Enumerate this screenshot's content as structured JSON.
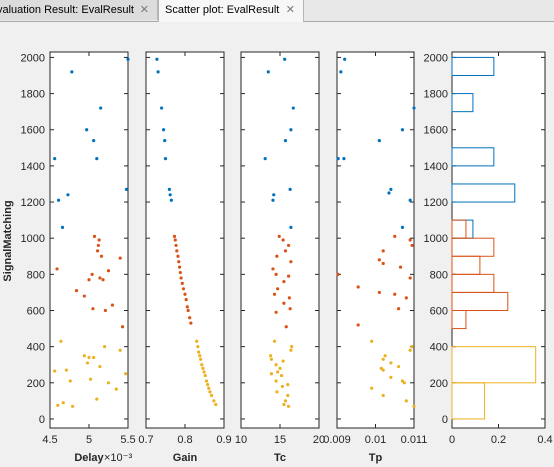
{
  "tabs": [
    {
      "label": "valuation Result: EvalResult",
      "close": "✕"
    },
    {
      "label": "Scatter plot: EvalResult",
      "close": "✕"
    }
  ],
  "colors": {
    "blue": "#0072BD",
    "orange": "#D95319",
    "yellow": "#EDB120"
  },
  "chart_data": {
    "type": "scatter",
    "ylabel": "SignalMatching",
    "ylim": [
      -50,
      2030
    ],
    "yticks": [
      0,
      200,
      400,
      600,
      800,
      1000,
      1200,
      1400,
      1600,
      1800,
      2000
    ],
    "panels": [
      {
        "xlabel": "Delay",
        "xlim": [
          4.5,
          5.5
        ],
        "xticks": [
          4.5,
          5,
          5.5
        ],
        "tick_labels": [
          "4.5",
          "5",
          "5.5"
        ],
        "exponent": "×10⁻³",
        "series": [
          {
            "color": "blue",
            "points": [
              [
                5.5,
                1990
              ],
              [
                4.78,
                1920
              ],
              [
                5.15,
                1720
              ],
              [
                4.97,
                1600
              ],
              [
                5.06,
                1540
              ],
              [
                5.1,
                1440
              ],
              [
                4.56,
                1440
              ],
              [
                5.48,
                1270
              ],
              [
                4.73,
                1240
              ],
              [
                4.61,
                1210
              ],
              [
                4.66,
                1060
              ]
            ]
          },
          {
            "color": "orange",
            "points": [
              [
                5.07,
                1010
              ],
              [
                5.13,
                990
              ],
              [
                5.12,
                960
              ],
              [
                5.11,
                930
              ],
              [
                5.16,
                900
              ],
              [
                5.4,
                890
              ],
              [
                4.59,
                830
              ],
              [
                5.25,
                820
              ],
              [
                5.04,
                800
              ],
              [
                5.14,
                780
              ],
              [
                5.18,
                770
              ],
              [
                5.0,
                770
              ],
              [
                4.84,
                710
              ],
              [
                4.94,
                680
              ],
              [
                5.3,
                630
              ],
              [
                5.05,
                610
              ],
              [
                5.21,
                600
              ],
              [
                5.43,
                510
              ]
            ]
          },
          {
            "color": "yellow",
            "points": [
              [
                4.64,
                430
              ],
              [
                5.2,
                400
              ],
              [
                5.4,
                380
              ],
              [
                4.94,
                350
              ],
              [
                5.0,
                340
              ],
              [
                5.06,
                340
              ],
              [
                4.98,
                310
              ],
              [
                5.14,
                290
              ],
              [
                4.71,
                270
              ],
              [
                4.56,
                265
              ],
              [
                5.47,
                250
              ],
              [
                5.02,
                220
              ],
              [
                4.76,
                210
              ],
              [
                5.25,
                200
              ],
              [
                5.35,
                165
              ],
              [
                5.1,
                110
              ],
              [
                4.67,
                90
              ],
              [
                4.6,
                75
              ],
              [
                4.79,
                70
              ]
            ]
          }
        ]
      },
      {
        "xlabel": "Gain",
        "xlim": [
          0.7,
          0.9
        ],
        "xticks": [
          0.7,
          0.8,
          0.9
        ],
        "tick_labels": [
          "0.7",
          "0.8",
          "0.9"
        ],
        "series": [
          {
            "color": "blue",
            "points": [
              [
                0.728,
                1990
              ],
              [
                0.731,
                1920
              ],
              [
                0.74,
                1720
              ],
              [
                0.745,
                1600
              ],
              [
                0.748,
                1540
              ],
              [
                0.75,
                1440
              ],
              [
                0.76,
                1270
              ],
              [
                0.762,
                1240
              ],
              [
                0.765,
                1210
              ]
            ]
          },
          {
            "color": "orange",
            "points": [
              [
                0.773,
                1010
              ],
              [
                0.775,
                990
              ],
              [
                0.777,
                960
              ],
              [
                0.779,
                930
              ],
              [
                0.782,
                900
              ],
              [
                0.784,
                870
              ],
              [
                0.786,
                840
              ],
              [
                0.788,
                810
              ],
              [
                0.79,
                780
              ],
              [
                0.793,
                750
              ],
              [
                0.796,
                720
              ],
              [
                0.8,
                690
              ],
              [
                0.803,
                660
              ],
              [
                0.806,
                620
              ],
              [
                0.808,
                600
              ],
              [
                0.812,
                560
              ],
              [
                0.815,
                530
              ]
            ]
          },
          {
            "color": "yellow",
            "points": [
              [
                0.83,
                430
              ],
              [
                0.833,
                400
              ],
              [
                0.835,
                370
              ],
              [
                0.838,
                350
              ],
              [
                0.84,
                330
              ],
              [
                0.843,
                300
              ],
              [
                0.846,
                280
              ],
              [
                0.849,
                260
              ],
              [
                0.852,
                240
              ],
              [
                0.855,
                210
              ],
              [
                0.858,
                190
              ],
              [
                0.861,
                170
              ],
              [
                0.864,
                150
              ],
              [
                0.868,
                130
              ],
              [
                0.874,
                100
              ],
              [
                0.879,
                80
              ]
            ]
          }
        ]
      },
      {
        "xlabel": "Tc",
        "xlim": [
          10,
          20
        ],
        "xticks": [
          10,
          15,
          20
        ],
        "tick_labels": [
          "10",
          "15",
          "20"
        ],
        "series": [
          {
            "color": "blue",
            "points": [
              [
                15.6,
                1990
              ],
              [
                13.5,
                1920
              ],
              [
                16.7,
                1720
              ],
              [
                16.4,
                1600
              ],
              [
                15.7,
                1540
              ],
              [
                13.1,
                1440
              ],
              [
                16.3,
                1270
              ],
              [
                14.2,
                1240
              ],
              [
                14.1,
                1210
              ],
              [
                16.4,
                1060
              ]
            ]
          },
          {
            "color": "orange",
            "points": [
              [
                14.9,
                1010
              ],
              [
                15.4,
                990
              ],
              [
                16.1,
                960
              ],
              [
                15.7,
                930
              ],
              [
                14.6,
                900
              ],
              [
                16.4,
                870
              ],
              [
                14.1,
                830
              ],
              [
                14.5,
                800
              ],
              [
                16.1,
                790
              ],
              [
                15.5,
                760
              ],
              [
                14.7,
                720
              ],
              [
                14.3,
                690
              ],
              [
                16.2,
                670
              ],
              [
                15.5,
                640
              ],
              [
                16.3,
                610
              ],
              [
                14.5,
                590
              ],
              [
                15.8,
                510
              ]
            ]
          },
          {
            "color": "yellow",
            "points": [
              [
                14.3,
                430
              ],
              [
                16.5,
                400
              ],
              [
                16.4,
                380
              ],
              [
                13.8,
                350
              ],
              [
                13.9,
                330
              ],
              [
                15.4,
                320
              ],
              [
                14.5,
                300
              ],
              [
                15.0,
                280
              ],
              [
                14.7,
                260
              ],
              [
                13.9,
                250
              ],
              [
                15.2,
                240
              ],
              [
                14.5,
                210
              ],
              [
                16.0,
                190
              ],
              [
                15.3,
                180
              ],
              [
                14.6,
                150
              ],
              [
                16.0,
                130
              ],
              [
                15.7,
                100
              ],
              [
                15.5,
                80
              ],
              [
                16.1,
                70
              ]
            ]
          }
        ]
      },
      {
        "xlabel": "Tp",
        "xlim": [
          0.009,
          0.011
        ],
        "xticks": [
          0.009,
          0.01,
          0.011
        ],
        "tick_labels": [
          "0.009",
          "0.01",
          "0.011"
        ],
        "series": [
          {
            "color": "blue",
            "points": [
              [
                0.0092,
                1990
              ],
              [
                0.0091,
                1920
              ],
              [
                0.011,
                1720
              ],
              [
                0.0107,
                1600
              ],
              [
                0.0101,
                1540
              ],
              [
                0.00903,
                1440
              ],
              [
                0.00918,
                1440
              ],
              [
                0.0104,
                1270
              ],
              [
                0.01035,
                1250
              ],
              [
                0.0109,
                1210
              ],
              [
                0.0107,
                1060
              ]
            ]
          },
          {
            "color": "orange",
            "points": [
              [
                0.0105,
                1010
              ],
              [
                0.0109,
                990
              ],
              [
                0.01095,
                960
              ],
              [
                0.0102,
                930
              ],
              [
                0.0101,
                880
              ],
              [
                0.0102,
                860
              ],
              [
                0.01065,
                840
              ],
              [
                0.00903,
                800
              ],
              [
                0.0109,
                780
              ],
              [
                0.00955,
                730
              ],
              [
                0.0101,
                700
              ],
              [
                0.0105,
                690
              ],
              [
                0.0108,
                670
              ],
              [
                0.0106,
                610
              ],
              [
                0.00955,
                520
              ]
            ]
          },
          {
            "color": "yellow",
            "points": [
              [
                0.0099,
                430
              ],
              [
                0.01095,
                400
              ],
              [
                0.0109,
                380
              ],
              [
                0.01025,
                350
              ],
              [
                0.0102,
                330
              ],
              [
                0.0104,
                310
              ],
              [
                0.0106,
                290
              ],
              [
                0.01015,
                280
              ],
              [
                0.0102,
                270
              ],
              [
                0.0104,
                230
              ],
              [
                0.0107,
                210
              ],
              [
                0.01075,
                200
              ],
              [
                0.0099,
                170
              ],
              [
                0.0102,
                130
              ],
              [
                0.0108,
                100
              ],
              [
                0.011,
                70
              ]
            ]
          }
        ]
      },
      {
        "type": "histogram",
        "xlim": [
          0,
          0.4
        ],
        "xticks": [
          0,
          0.2,
          0.4
        ],
        "tick_labels": [
          "0",
          "0.2",
          "0.4"
        ],
        "series": [
          {
            "color": "blue",
            "bins": [
              [
                1900,
                2000,
                0.18
              ],
              [
                1800,
                1900,
                0
              ],
              [
                1700,
                1800,
                0.09
              ],
              [
                1600,
                1700,
                0
              ],
              [
                1500,
                1600,
                0
              ],
              [
                1400,
                1500,
                0.18
              ],
              [
                1300,
                1400,
                0
              ],
              [
                1200,
                1300,
                0.27
              ],
              [
                1100,
                1200,
                0
              ],
              [
                1000,
                1100,
                0.09
              ]
            ]
          },
          {
            "color": "orange",
            "bins": [
              [
                1000,
                1100,
                0.06
              ],
              [
                900,
                1000,
                0.18
              ],
              [
                800,
                900,
                0.12
              ],
              [
                700,
                800,
                0.18
              ],
              [
                600,
                700,
                0.24
              ],
              [
                500,
                600,
                0.06
              ]
            ]
          },
          {
            "color": "yellow",
            "bins": [
              [
                400,
                500,
                0
              ],
              [
                200,
                400,
                0.36
              ],
              [
                0,
                200,
                0.14
              ]
            ]
          }
        ]
      }
    ]
  }
}
